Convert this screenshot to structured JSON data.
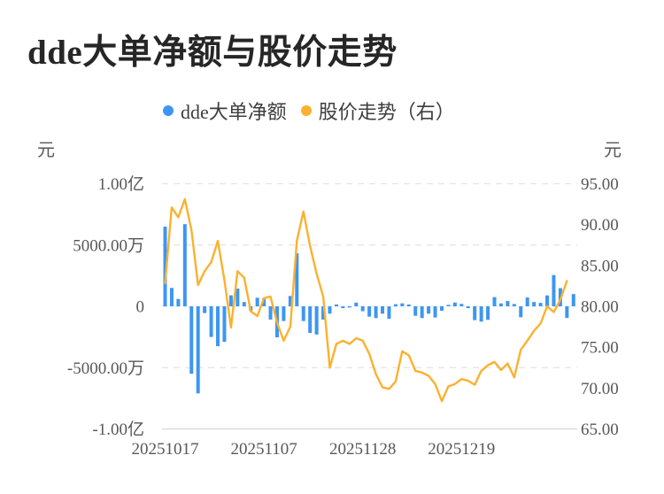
{
  "title": "dde大单净额与股价走势",
  "legend": [
    {
      "label": "dde大单净额",
      "color": "#3D96F2"
    },
    {
      "label": "股价走势（右）",
      "color": "#FBB12F"
    }
  ],
  "chart_data": {
    "type": "combo",
    "title": "dde大单净额与股价走势",
    "x_axis": {
      "labels": [
        "20251017",
        "20251107",
        "20251128",
        "20251219"
      ],
      "label_indices": [
        0,
        15,
        30,
        45
      ],
      "num_points": 63
    },
    "left_axis": {
      "unit": "元",
      "tick_labels": [
        "1.00亿",
        "5000.00万",
        "0",
        "-5000.00万",
        "-1.00亿"
      ],
      "tick_values_wan": [
        10000,
        5000,
        0,
        -5000,
        -10000
      ],
      "range_wan": [
        -10000,
        10000
      ],
      "grid": "dashed horizontal lines at tick positions, solid baseline at bottom"
    },
    "right_axis": {
      "unit": "元",
      "tick_labels": [
        "95.00",
        "90.00",
        "85.00",
        "80.00",
        "75.00",
        "70.00",
        "65.00"
      ],
      "tick_values": [
        95,
        90,
        85,
        80,
        75,
        70,
        65
      ],
      "range": [
        65,
        95
      ]
    },
    "series": [
      {
        "name": "dde大单净额",
        "type": "bar",
        "axis": "left",
        "unit": "万元",
        "color": "#3D96F2",
        "values_wan": [
          6500,
          1500,
          600,
          6700,
          -5500,
          -7100,
          -550,
          -2500,
          -3250,
          -2900,
          900,
          1450,
          350,
          -350,
          700,
          650,
          -1080,
          -2530,
          -1200,
          840,
          4330,
          -1200,
          -2170,
          -2300,
          -1080,
          -600,
          150,
          -150,
          -100,
          300,
          -400,
          -840,
          -960,
          -600,
          -1010,
          170,
          240,
          150,
          -770,
          -960,
          -600,
          -910,
          -360,
          120,
          310,
          200,
          -150,
          -1130,
          -1250,
          -1100,
          750,
          240,
          430,
          190,
          -890,
          720,
          350,
          280,
          890,
          2550,
          1480,
          -950,
          1000
        ]
      },
      {
        "name": "股价走势（右）",
        "type": "line",
        "axis": "right",
        "unit": "元",
        "color": "#FBB12F",
        "values": [
          82.8,
          92.1,
          90.9,
          93.1,
          89.3,
          82.6,
          84.3,
          85.4,
          88.0,
          83.2,
          77.4,
          84.3,
          83.5,
          79.4,
          78.8,
          81.0,
          81.2,
          78.0,
          75.8,
          77.5,
          88.0,
          91.6,
          87.4,
          84.0,
          81.2,
          72.5,
          75.4,
          75.8,
          75.4,
          76.1,
          75.8,
          74.2,
          71.7,
          70.1,
          69.9,
          70.8,
          74.5,
          74.0,
          72.1,
          71.9,
          71.5,
          70.5,
          68.4,
          70.2,
          70.5,
          71.1,
          70.9,
          70.4,
          72.1,
          72.8,
          73.2,
          72.2,
          73.0,
          71.3,
          74.7,
          75.8,
          77.0,
          77.9,
          80.0,
          79.3,
          80.8,
          83.1,
          null
        ]
      }
    ]
  }
}
